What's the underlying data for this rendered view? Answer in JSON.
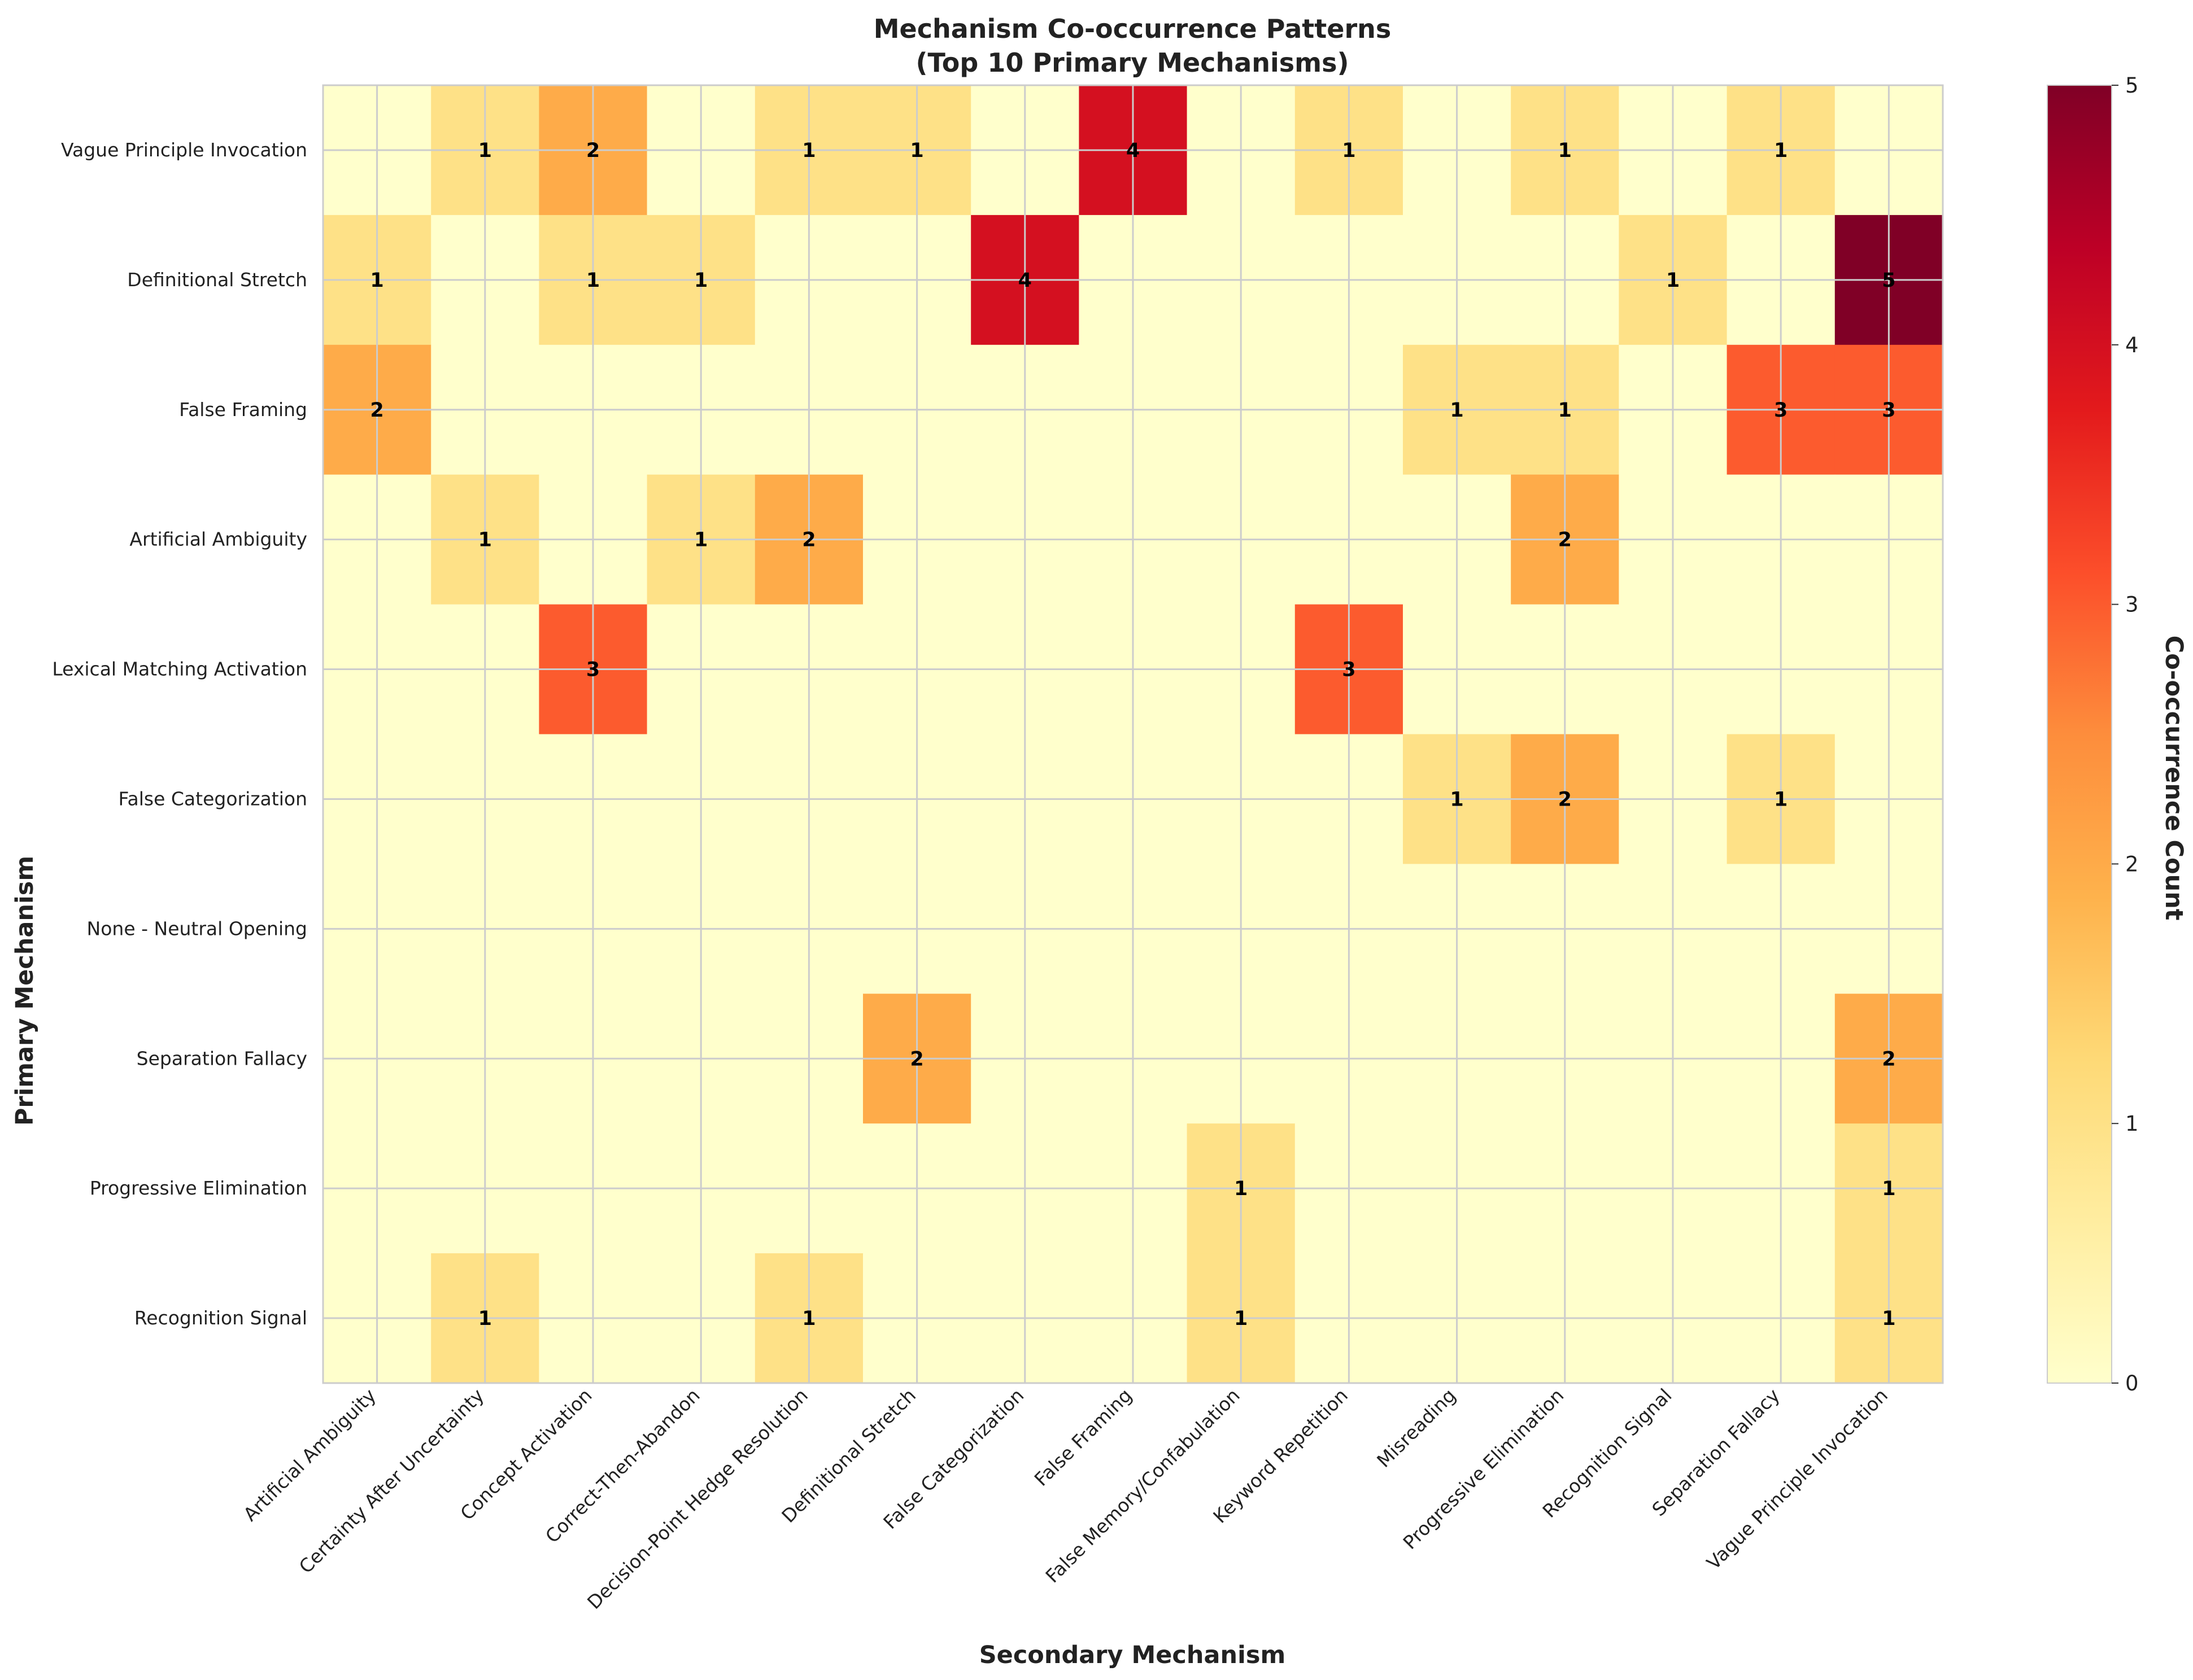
{
  "chart_data": {
    "type": "heatmap",
    "title": "Mechanism Co-occurrence Patterns",
    "subtitle": "(Top 10 Primary Mechanisms)",
    "xlabel": "Secondary Mechanism",
    "ylabel": "Primary Mechanism",
    "colorbar_label": "Co-occurrence Count",
    "colorbar_range": [
      0,
      5
    ],
    "colorbar_ticks": [
      "0",
      "1",
      "2",
      "3",
      "4",
      "5"
    ],
    "colormap": "YlOrRd",
    "colormap_stops": [
      "#ffffcc",
      "#ffeda0",
      "#fed976",
      "#feb24c",
      "#fd8d3c",
      "#fc4e2a",
      "#e31a1c",
      "#bd0026",
      "#800026"
    ],
    "grid": true,
    "x_categories": [
      "Artificial Ambiguity",
      "Certainty After Uncertainty",
      "Concept Activation",
      "Correct-Then-Abandon",
      "Decision-Point Hedge Resolution",
      "Definitional Stretch",
      "False Categorization",
      "False Framing",
      "False Memory/Confabulation",
      "Keyword Repetition",
      "Misreading",
      "Progressive Elimination",
      "Recognition Signal",
      "Separation Fallacy",
      "Vague Principle Invocation"
    ],
    "y_categories": [
      "Vague Principle Invocation",
      "Definitional Stretch",
      "False Framing",
      "Artificial Ambiguity",
      "Lexical Matching Activation",
      "False Categorization",
      "None - Neutral Opening",
      "Separation Fallacy",
      "Progressive Elimination",
      "Recognition Signal"
    ],
    "values": [
      [
        0,
        1,
        2,
        0,
        1,
        1,
        0,
        4,
        0,
        1,
        0,
        1,
        0,
        1,
        0
      ],
      [
        1,
        0,
        1,
        1,
        0,
        0,
        4,
        0,
        0,
        0,
        0,
        0,
        1,
        0,
        5
      ],
      [
        2,
        0,
        0,
        0,
        0,
        0,
        0,
        0,
        0,
        0,
        1,
        1,
        0,
        3,
        3
      ],
      [
        0,
        1,
        0,
        1,
        2,
        0,
        0,
        0,
        0,
        0,
        0,
        2,
        0,
        0,
        0
      ],
      [
        0,
        0,
        3,
        0,
        0,
        0,
        0,
        0,
        0,
        3,
        0,
        0,
        0,
        0,
        0
      ],
      [
        0,
        0,
        0,
        0,
        0,
        0,
        0,
        0,
        0,
        0,
        1,
        2,
        0,
        1,
        0
      ],
      [
        0,
        0,
        0,
        0,
        0,
        0,
        0,
        0,
        0,
        0,
        0,
        0,
        0,
        0,
        0
      ],
      [
        0,
        0,
        0,
        0,
        0,
        2,
        0,
        0,
        0,
        0,
        0,
        0,
        0,
        0,
        2
      ],
      [
        0,
        0,
        0,
        0,
        0,
        0,
        0,
        0,
        1,
        0,
        0,
        0,
        0,
        0,
        1
      ],
      [
        0,
        1,
        0,
        0,
        1,
        0,
        0,
        0,
        1,
        0,
        0,
        0,
        0,
        0,
        1
      ]
    ]
  }
}
